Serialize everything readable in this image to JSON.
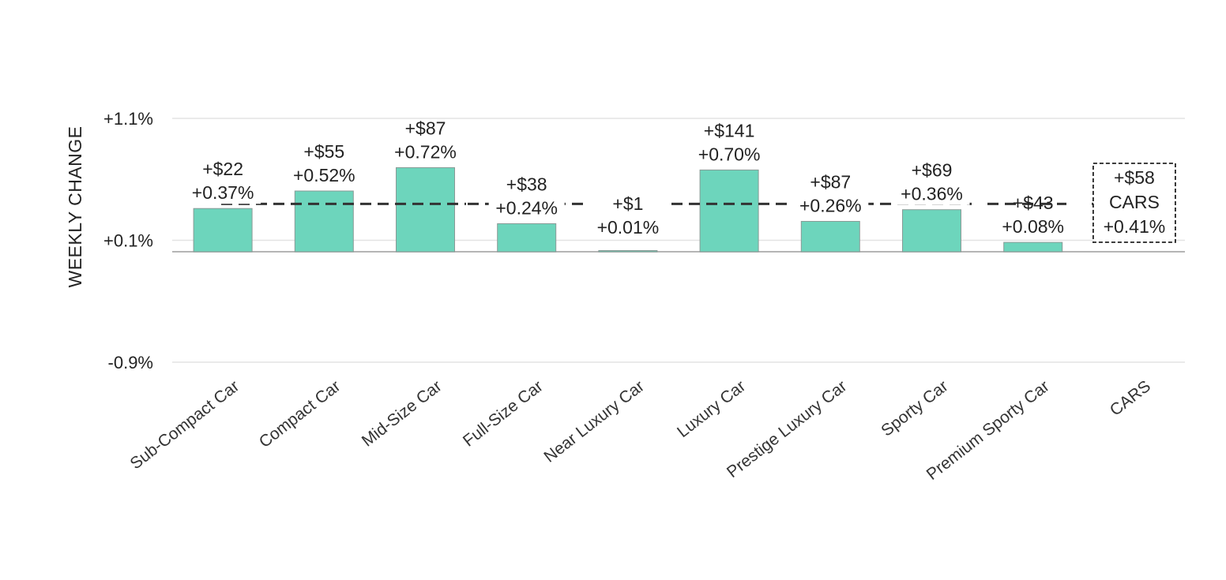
{
  "chart_data": {
    "type": "bar",
    "ylabel": "WEEKLY CHANGE",
    "yticks": [
      "+1.1%",
      "+0.1%",
      "-0.9%"
    ],
    "ylim": [
      -0.9,
      1.1
    ],
    "categories": [
      "Sub-Compact Car",
      "Compact Car",
      "Mid-Size Car",
      "Full-Size Car",
      "Near Luxury Car",
      "Luxury Car",
      "Prestige Luxury Car",
      "Sporty Car",
      "Premium Sporty Car",
      "CARS"
    ],
    "values": [
      0.37,
      0.52,
      0.72,
      0.24,
      0.01,
      0.7,
      0.26,
      0.36,
      0.08,
      0.41
    ],
    "dollar_labels": [
      "+$22",
      "+$55",
      "+$87",
      "+$38",
      "+$1",
      "+$141",
      "+$87",
      "+$69",
      "+$43",
      "+$58"
    ],
    "percent_labels": [
      "+0.37%",
      "+0.52%",
      "+0.72%",
      "+0.24%",
      "+0.01%",
      "+0.70%",
      "+0.26%",
      "+0.36%",
      "+0.08%",
      "+0.41%"
    ],
    "reference_line": {
      "value": 0.41,
      "style": "dashed"
    },
    "summary_box": {
      "category": "CARS",
      "lines": [
        "+$58",
        "CARS",
        "+0.41%"
      ]
    },
    "grid": true,
    "colors": {
      "bar": "#6dd5bc",
      "bar_stroke": "#8a9a96",
      "reference": "#333333",
      "grid": "#e3e3e3",
      "axis": "#b5b5b5"
    }
  }
}
